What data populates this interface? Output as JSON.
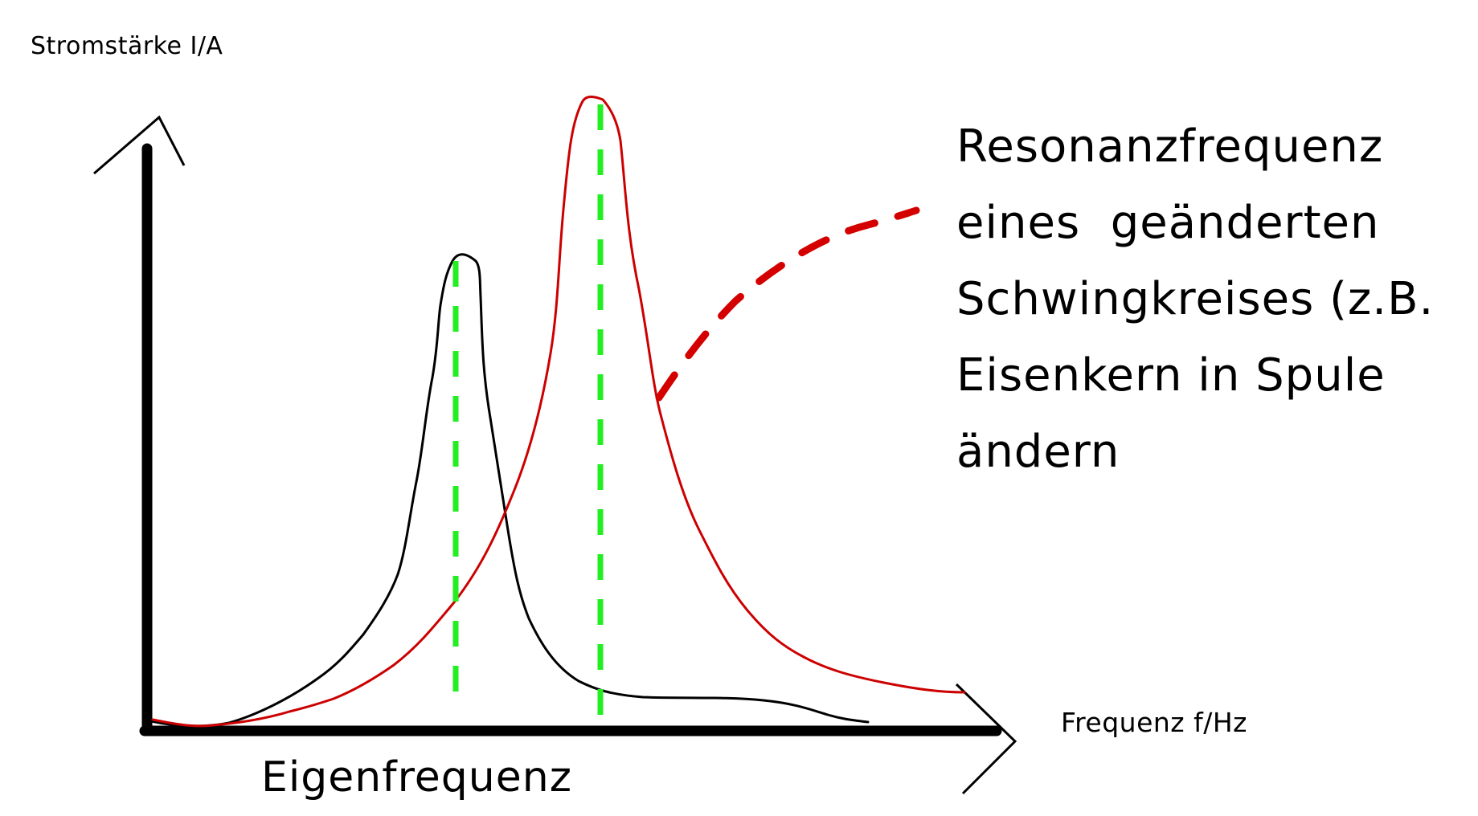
{
  "labels": {
    "y_axis": "Stromstärke I/A",
    "x_axis": "Frequenz f/Hz",
    "eigenfrequenz": "Eigenfrequenz"
  },
  "annotation": {
    "lines": [
      "Resonanzfrequenz",
      "eines  geänderten",
      "Schwingkreises (z.B.",
      "Eisenkern in Spule",
      "ändern"
    ]
  },
  "colors": {
    "axes": "#000000",
    "original_curve": "#000000",
    "shifted_curve": "#cc0000",
    "resonance_markers": "#22ee22",
    "annotation_pointer": "#d40000"
  },
  "curves": {
    "original": {
      "description_color": "black",
      "peak": "Eigenfrequenz"
    },
    "shifted": {
      "description_color": "red",
      "peak": "Resonanzfrequenz"
    }
  }
}
